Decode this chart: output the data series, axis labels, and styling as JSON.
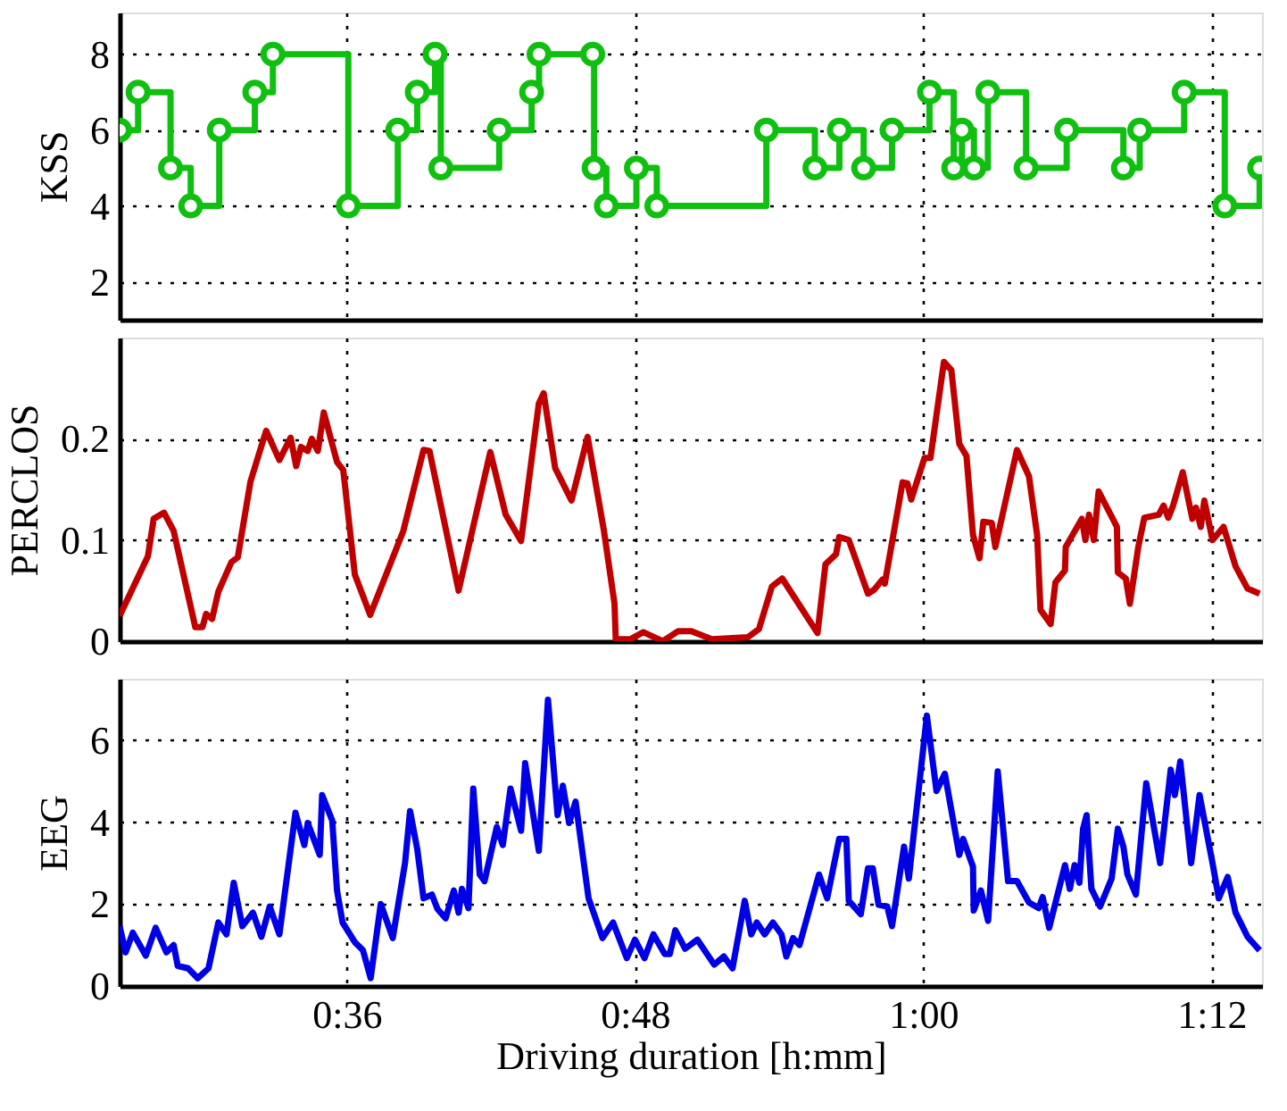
{
  "chart_data": [
    {
      "type": "step",
      "ylabel": "KSS",
      "color": "#10c010",
      "marker": "circle",
      "line_style": "solid",
      "grid": true,
      "tick_labels": "y",
      "x": [
        26.55,
        27.32,
        28.67,
        29.51,
        30.7,
        32.18,
        32.93,
        36.07,
        38.13,
        38.94,
        39.68,
        39.92,
        42.35,
        43.7,
        44.01,
        46.24,
        46.3,
        46.81,
        48.06,
        48.91,
        53.47,
        55.49,
        56.51,
        57.52,
        58.7,
        60.26,
        61.27,
        61.61,
        62.11,
        62.69,
        64.28,
        65.97,
        68.33,
        69.01,
        70.86,
        72.55,
        74.0
      ],
      "values": [
        6,
        7,
        5,
        4,
        6,
        7,
        8,
        4,
        6,
        7,
        8,
        5,
        6,
        7,
        8,
        8,
        5,
        4,
        5,
        4,
        6,
        5,
        6,
        5,
        6,
        7,
        5,
        6,
        5,
        7,
        5,
        6,
        5,
        6,
        7,
        4,
        5
      ],
      "xlim": [
        26.55,
        74.1
      ],
      "xticks": [
        {
          "value": 36,
          "label": null
        },
        {
          "value": 48,
          "label": null
        },
        {
          "value": 60,
          "label": null
        },
        {
          "value": 72,
          "label": null
        }
      ],
      "ylim": [
        1,
        9.1
      ],
      "yticks": [
        2,
        4,
        6,
        8
      ]
    },
    {
      "type": "line",
      "ylabel": "PERCLOS",
      "color": "#c00000",
      "line_style": "solid",
      "grid": true,
      "tick_labels": "y",
      "x": [
        26.55,
        27.73,
        27.97,
        28.4,
        28.8,
        29.7,
        30.0,
        30.15,
        30.4,
        30.66,
        31.2,
        31.47,
        32.0,
        32.65,
        33.2,
        33.67,
        33.9,
        34.1,
        34.38,
        34.55,
        34.8,
        35.05,
        35.6,
        35.86,
        36.34,
        36.98,
        38.36,
        39.2,
        39.45,
        40.66,
        41.98,
        42.62,
        43.26,
        44.0,
        44.2,
        44.68,
        45.36,
        46.03,
        46.71,
        47.15,
        47.2,
        47.8,
        48.35,
        49.16,
        49.8,
        50.35,
        51.2,
        52.7,
        53.16,
        53.7,
        54.13,
        55.6,
        55.93,
        56.37,
        56.5,
        56.9,
        57.7,
        57.96,
        58.3,
        58.4,
        59.14,
        59.34,
        59.5,
        60.05,
        60.3,
        60.86,
        61.17,
        61.5,
        61.8,
        62.07,
        62.34,
        62.5,
        62.85,
        63.0,
        63.9,
        64.4,
        64.74,
        64.88,
        65.3,
        65.5,
        65.9,
        65.93,
        66.6,
        66.75,
        66.9,
        67.1,
        67.3,
        68.06,
        68.1,
        68.43,
        68.6,
        68.95,
        69.2,
        69.8,
        70.0,
        70.2,
        70.4,
        70.8,
        71.2,
        71.35,
        71.55,
        71.7,
        72.04,
        72.5,
        73.0,
        73.5,
        74.0
      ],
      "values": [
        0.025,
        0.084,
        0.121,
        0.127,
        0.109,
        0.014,
        0.014,
        0.027,
        0.022,
        0.049,
        0.078,
        0.083,
        0.158,
        0.208,
        0.179,
        0.201,
        0.173,
        0.192,
        0.188,
        0.2,
        0.188,
        0.226,
        0.177,
        0.169,
        0.066,
        0.026,
        0.109,
        0.189,
        0.188,
        0.05,
        0.187,
        0.125,
        0.099,
        0.235,
        0.245,
        0.171,
        0.139,
        0.202,
        0.109,
        0.037,
        0.002,
        0.002,
        0.009,
        0.0,
        0.01,
        0.01,
        0.002,
        0.004,
        0.012,
        0.054,
        0.062,
        0.008,
        0.076,
        0.086,
        0.103,
        0.1,
        0.047,
        0.051,
        0.061,
        0.057,
        0.157,
        0.156,
        0.14,
        0.181,
        0.181,
        0.276,
        0.268,
        0.195,
        0.183,
        0.105,
        0.082,
        0.118,
        0.117,
        0.093,
        0.189,
        0.163,
        0.105,
        0.031,
        0.017,
        0.058,
        0.07,
        0.093,
        0.121,
        0.1,
        0.125,
        0.1,
        0.148,
        0.113,
        0.068,
        0.062,
        0.037,
        0.093,
        0.122,
        0.125,
        0.134,
        0.122,
        0.134,
        0.167,
        0.121,
        0.132,
        0.113,
        0.139,
        0.1,
        0.113,
        0.074,
        0.052,
        0.047
      ],
      "xlim": [
        26.55,
        74.1
      ],
      "xticks": [
        {
          "value": 36,
          "label": null
        },
        {
          "value": 48,
          "label": null
        },
        {
          "value": 60,
          "label": null
        },
        {
          "value": 72,
          "label": null
        }
      ],
      "ylim": [
        0,
        0.3
      ],
      "yticks": [
        0,
        0.1,
        0.2
      ]
    },
    {
      "type": "line",
      "xlabel": "Driving duration [h:mm]",
      "ylabel": "EEG",
      "color": "#0000e6",
      "line_style": "solid",
      "grid": true,
      "x": [
        26.55,
        26.8,
        27.1,
        27.64,
        28.05,
        28.5,
        28.8,
        28.97,
        29.4,
        29.8,
        30.25,
        30.66,
        31.0,
        31.3,
        31.66,
        32.1,
        32.45,
        32.8,
        33.2,
        33.87,
        34.24,
        34.38,
        34.88,
        34.98,
        35.4,
        35.6,
        35.83,
        36.34,
        36.68,
        37.0,
        37.42,
        37.92,
        38.43,
        38.64,
        38.94,
        39.2,
        39.55,
        39.78,
        40.12,
        40.46,
        40.66,
        40.8,
        41.07,
        41.27,
        41.54,
        41.74,
        42.25,
        42.5,
        42.82,
        43.26,
        43.43,
        44.0,
        44.38,
        44.78,
        45.0,
        45.26,
        45.53,
        46.07,
        46.65,
        47.09,
        47.66,
        48.0,
        48.4,
        48.77,
        49.24,
        49.45,
        49.68,
        50.09,
        50.6,
        51.3,
        51.7,
        52.06,
        52.57,
        52.84,
        53.07,
        53.4,
        53.74,
        54.1,
        54.3,
        54.58,
        54.85,
        55.66,
        56.0,
        56.5,
        56.8,
        56.9,
        57.4,
        57.7,
        57.9,
        58.14,
        58.5,
        58.7,
        59.2,
        59.4,
        60.15,
        60.55,
        60.9,
        61.5,
        61.66,
        62.07,
        62.1,
        62.4,
        62.7,
        63.1,
        63.53,
        63.9,
        64.4,
        64.8,
        64.97,
        65.24,
        65.9,
        66.1,
        66.3,
        66.5,
        66.65,
        66.8,
        67.0,
        67.36,
        67.84,
        68.1,
        68.33,
        68.5,
        68.85,
        69.28,
        69.86,
        70.3,
        70.47,
        70.7,
        71.15,
        71.5,
        72.04,
        72.3,
        72.67,
        73.0,
        73.5,
        74.0
      ],
      "values": [
        1.46,
        0.82,
        1.3,
        0.74,
        1.42,
        0.82,
        1.0,
        0.49,
        0.43,
        0.19,
        0.43,
        1.55,
        1.26,
        2.52,
        1.46,
        1.79,
        1.2,
        1.94,
        1.26,
        4.23,
        3.44,
        3.98,
        3.2,
        4.66,
        4.04,
        2.33,
        1.55,
        1.07,
        0.87,
        0.19,
        2.0,
        1.17,
        3.0,
        4.27,
        3.34,
        2.14,
        2.23,
        1.88,
        1.65,
        2.33,
        1.79,
        2.37,
        1.9,
        4.82,
        2.72,
        2.56,
        3.88,
        3.44,
        4.82,
        3.79,
        5.44,
        3.3,
        6.99,
        4.17,
        4.89,
        3.98,
        4.5,
        2.14,
        1.17,
        1.55,
        0.68,
        1.13,
        0.68,
        1.26,
        0.78,
        0.78,
        1.36,
        0.91,
        1.13,
        0.52,
        0.72,
        0.43,
        2.08,
        1.26,
        1.55,
        1.26,
        1.55,
        1.26,
        0.72,
        1.17,
        1.0,
        2.72,
        2.14,
        3.59,
        3.59,
        2.08,
        1.75,
        2.87,
        2.87,
        1.98,
        1.94,
        1.46,
        3.4,
        2.62,
        6.6,
        4.76,
        5.18,
        3.2,
        3.59,
        2.91,
        1.84,
        2.33,
        1.59,
        5.24,
        2.56,
        2.56,
        2.04,
        1.9,
        2.17,
        1.42,
        2.95,
        2.37,
        2.95,
        2.52,
        3.83,
        4.17,
        2.37,
        1.94,
        2.62,
        3.84,
        3.4,
        2.72,
        2.23,
        4.95,
        3.0,
        5.28,
        4.66,
        5.48,
        3.0,
        4.66,
        3.0,
        2.14,
        2.66,
        1.79,
        1.2,
        0.87
      ],
      "xlim": [
        26.55,
        74.1
      ],
      "xticks": [
        {
          "value": 36,
          "label": "0:36"
        },
        {
          "value": 48,
          "label": "0:48"
        },
        {
          "value": 60,
          "label": "1:00"
        },
        {
          "value": 72,
          "label": "1:12"
        }
      ],
      "ylim": [
        0,
        7.5
      ],
      "yticks": [
        0,
        2,
        4,
        6
      ]
    }
  ]
}
